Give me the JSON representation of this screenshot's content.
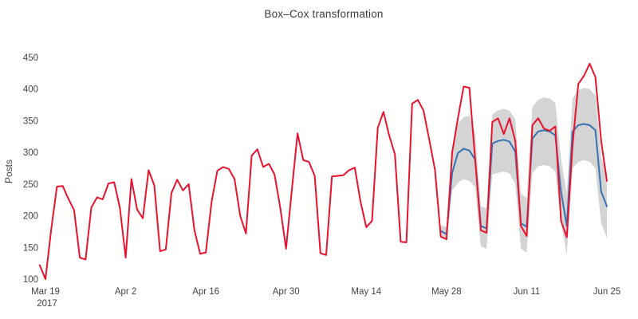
{
  "page": {
    "background": "#ffffff",
    "text_color": "#444444"
  },
  "chart": {
    "title": "Box–Cox transformation",
    "ylabel": "Posts"
  },
  "chart_data": {
    "type": "line",
    "title": "Box–Cox transformation",
    "xlabel": "",
    "ylabel": "Posts",
    "grid": false,
    "legend": "none",
    "background": "#ffffff",
    "ylim": [
      100,
      450
    ],
    "yticks": [
      100,
      150,
      200,
      250,
      300,
      350,
      400,
      450
    ],
    "x_unit": "days (offset from first x tick)",
    "xlim_days": [
      -1,
      98
    ],
    "xticks": [
      {
        "day": 0,
        "label": "Mar 19",
        "sublabel": "2017"
      },
      {
        "day": 14,
        "label": "Apr 2"
      },
      {
        "day": 28,
        "label": "Apr 16"
      },
      {
        "day": 42,
        "label": "Apr 30"
      },
      {
        "day": 56,
        "label": "May 14"
      },
      {
        "day": 70,
        "label": "May 28"
      },
      {
        "day": 84,
        "label": "Jun 11"
      },
      {
        "day": 98,
        "label": "Jun 25"
      }
    ],
    "series": [
      {
        "name": "observed-posts",
        "type": "line",
        "color": "#e8132f",
        "width": 2,
        "x": [
          -1,
          0,
          1,
          2,
          3,
          4,
          5,
          6,
          7,
          8,
          9,
          10,
          11,
          12,
          13,
          14,
          15,
          16,
          17,
          18,
          19,
          20,
          21,
          22,
          23,
          24,
          25,
          26,
          27,
          28,
          29,
          30,
          31,
          32,
          33,
          34,
          35,
          36,
          37,
          38,
          39,
          40,
          41,
          42,
          43,
          44,
          45,
          46,
          47,
          48,
          49,
          50,
          51,
          52,
          53,
          54,
          55,
          56,
          57,
          58,
          59,
          60,
          61,
          62,
          63,
          64,
          65,
          66,
          67,
          68,
          69,
          70,
          71,
          72,
          73,
          74,
          75,
          76,
          77,
          78,
          79,
          80,
          81,
          82,
          83,
          84,
          85,
          86,
          87,
          88,
          89,
          90,
          91,
          92,
          93,
          94,
          95,
          96,
          97,
          98
        ],
        "y": [
          122,
          100,
          178,
          246,
          247,
          227,
          209,
          134,
          131,
          213,
          229,
          226,
          251,
          253,
          212,
          134,
          258,
          210,
          196,
          272,
          248,
          144,
          147,
          236,
          257,
          240,
          250,
          177,
          140,
          142,
          222,
          271,
          277,
          274,
          258,
          200,
          172,
          295,
          305,
          277,
          282,
          265,
          212,
          148,
          240,
          330,
          288,
          285,
          263,
          141,
          138,
          262,
          263,
          264,
          272,
          276,
          222,
          182,
          192,
          339,
          364,
          327,
          297,
          159,
          158,
          377,
          383,
          366,
          320,
          272,
          167,
          163,
          300,
          354,
          404,
          402,
          289,
          177,
          173,
          348,
          354,
          329,
          354,
          318,
          184,
          168,
          343,
          354,
          338,
          334,
          341,
          192,
          166,
          310,
          408,
          421,
          440,
          419,
          318,
          255
        ]
      },
      {
        "name": "forecast-posts",
        "type": "line",
        "color": "#3572b0",
        "width": 2,
        "x": [
          69,
          70,
          71,
          72,
          73,
          74,
          75,
          76,
          77,
          78,
          79,
          80,
          81,
          82,
          83,
          84,
          85,
          86,
          87,
          88,
          89,
          90,
          91,
          92,
          93,
          94,
          95,
          96,
          97,
          98
        ],
        "y": [
          176,
          171,
          268,
          299,
          306,
          303,
          289,
          184,
          180,
          314,
          318,
          320,
          317,
          301,
          188,
          183,
          322,
          333,
          335,
          333,
          327,
          238,
          184,
          333,
          343,
          345,
          343,
          335,
          238,
          215
        ]
      },
      {
        "name": "confidence-interval",
        "type": "band",
        "color": "#c9c9c9",
        "opacity": 0.8,
        "x": [
          69,
          70,
          71,
          72,
          73,
          74,
          75,
          76,
          77,
          78,
          79,
          80,
          81,
          82,
          83,
          84,
          85,
          86,
          87,
          88,
          89,
          90,
          91,
          92,
          93,
          94,
          95,
          96,
          97,
          98
        ],
        "upper": [
          185,
          182,
          300,
          345,
          356,
          358,
          330,
          215,
          212,
          360,
          366,
          369,
          366,
          352,
          235,
          228,
          372,
          383,
          387,
          385,
          378,
          290,
          235,
          385,
          398,
          402,
          400,
          390,
          292,
          268
        ],
        "lower": [
          168,
          160,
          240,
          252,
          258,
          255,
          245,
          152,
          148,
          265,
          268,
          270,
          267,
          250,
          148,
          142,
          268,
          278,
          280,
          278,
          270,
          190,
          138,
          275,
          285,
          288,
          285,
          275,
          188,
          165
        ]
      }
    ]
  }
}
